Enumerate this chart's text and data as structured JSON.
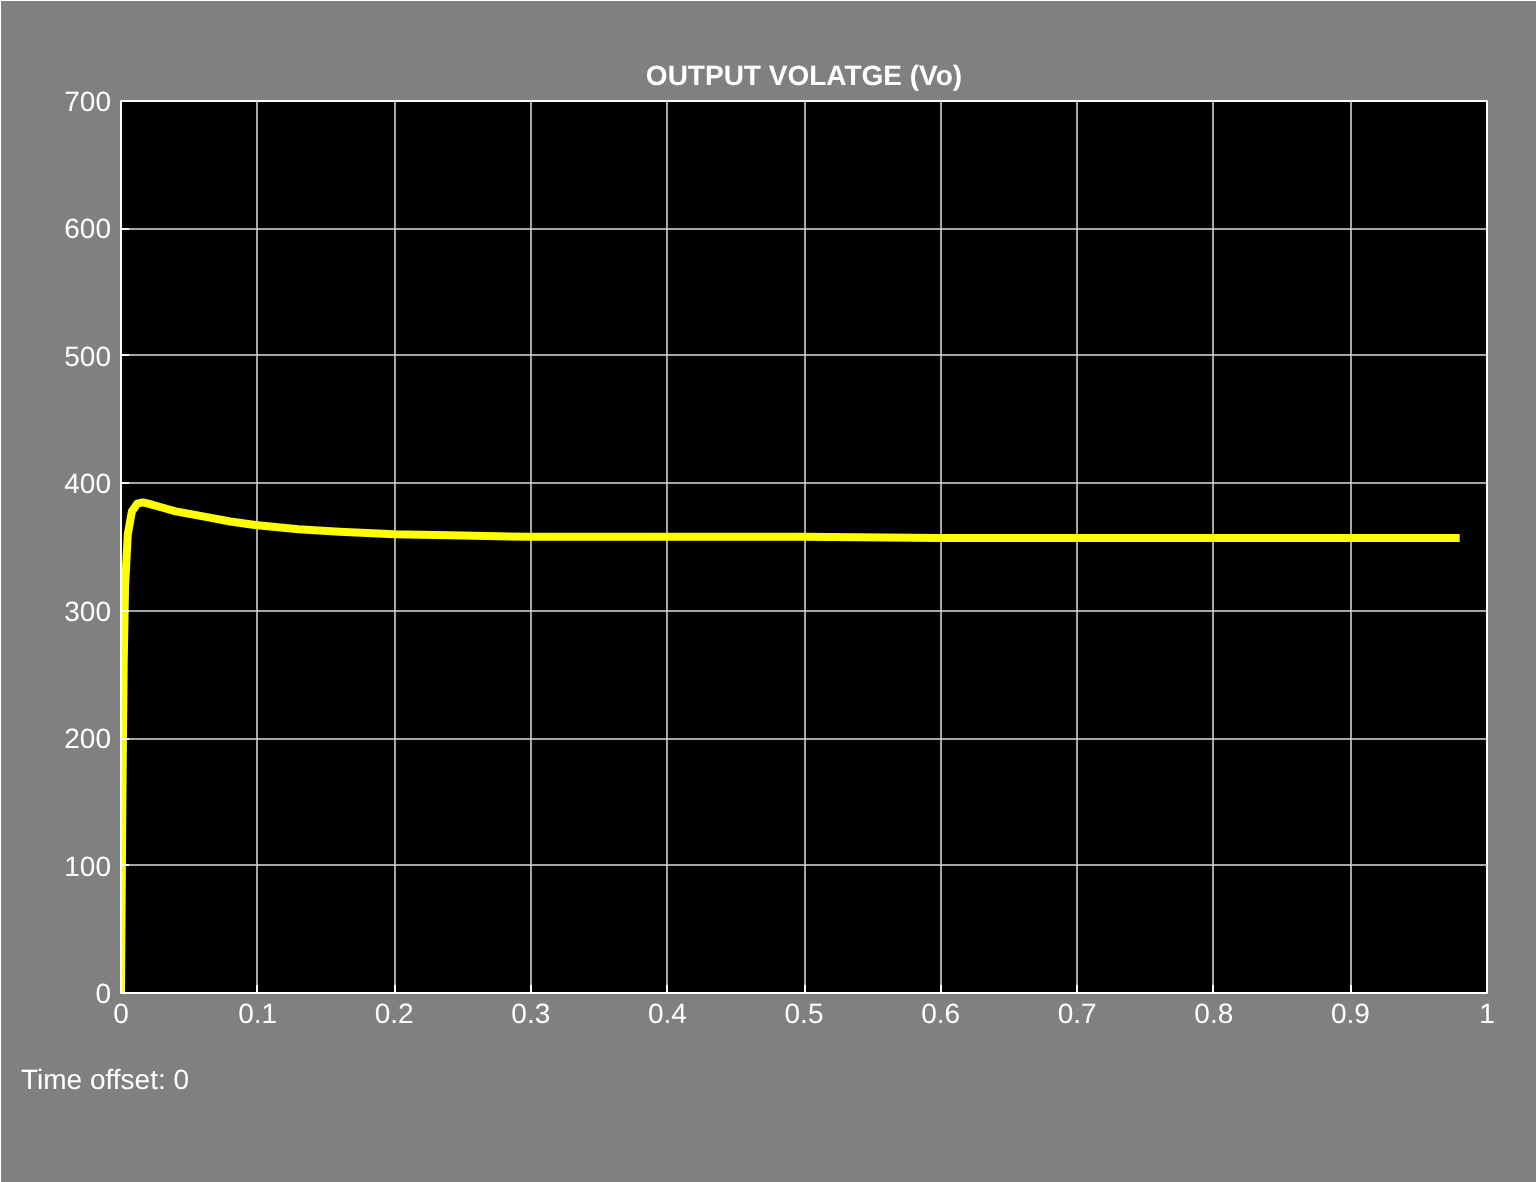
{
  "chart_data": {
    "type": "line",
    "title": "OUTPUT VOLATGE (Vo)",
    "x": [
      0,
      0.001,
      0.002,
      0.003,
      0.005,
      0.008,
      0.012,
      0.016,
      0.02,
      0.03,
      0.04,
      0.06,
      0.08,
      0.1,
      0.13,
      0.16,
      0.2,
      0.25,
      0.3,
      0.4,
      0.5,
      0.6,
      0.7,
      0.8,
      0.9,
      0.98
    ],
    "series": [
      {
        "color": "#ffff00",
        "values": [
          0,
          150,
          260,
          320,
          360,
          378,
          384,
          385,
          384,
          381,
          378,
          374,
          370,
          367,
          364,
          362,
          360,
          359,
          358,
          358,
          358,
          357,
          357,
          357,
          357,
          357
        ]
      }
    ],
    "xlim": [
      0,
      1
    ],
    "xticks": [
      0,
      0.1,
      0.2,
      0.3,
      0.4,
      0.5,
      0.6,
      0.7,
      0.8,
      0.9,
      1
    ],
    "ylim": [
      0,
      700
    ],
    "yticks": [
      0,
      100,
      200,
      300,
      400,
      500,
      600,
      700
    ],
    "grid": true,
    "marker": "none",
    "line_style": "solid",
    "annotations": [
      "Time offset:  0"
    ]
  }
}
